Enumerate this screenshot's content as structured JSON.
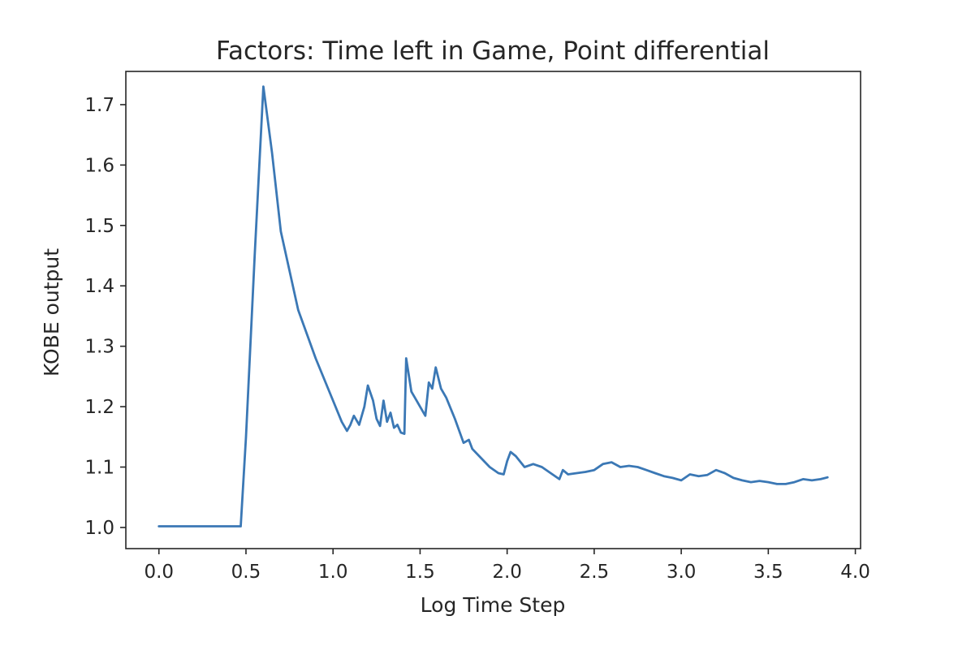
{
  "chart_data": {
    "type": "line",
    "title": "Factors: Time left in Game, Point differential",
    "xlabel": "Log Time Step",
    "ylabel": "KOBE output",
    "xlim": [
      -0.19,
      4.03
    ],
    "ylim": [
      0.965,
      1.755
    ],
    "xticks": [
      0.0,
      0.5,
      1.0,
      1.5,
      2.0,
      2.5,
      3.0,
      3.5,
      4.0
    ],
    "xtick_labels": [
      "0.0",
      "0.5",
      "1.0",
      "1.5",
      "2.0",
      "2.5",
      "3.0",
      "3.5",
      "4.0"
    ],
    "yticks": [
      1.0,
      1.1,
      1.2,
      1.3,
      1.4,
      1.5,
      1.6,
      1.7
    ],
    "ytick_labels": [
      "1.0",
      "1.1",
      "1.2",
      "1.3",
      "1.4",
      "1.5",
      "1.6",
      "1.7"
    ],
    "grid": false,
    "series": [
      {
        "color": "#3b78b5",
        "x": [
          0.0,
          0.3,
          0.47,
          0.5,
          0.55,
          0.6,
          0.65,
          0.7,
          0.8,
          0.9,
          1.0,
          1.05,
          1.08,
          1.1,
          1.12,
          1.15,
          1.18,
          1.2,
          1.23,
          1.25,
          1.27,
          1.29,
          1.31,
          1.33,
          1.35,
          1.37,
          1.39,
          1.41,
          1.42,
          1.45,
          1.48,
          1.5,
          1.53,
          1.55,
          1.57,
          1.59,
          1.62,
          1.65,
          1.7,
          1.75,
          1.78,
          1.8,
          1.85,
          1.9,
          1.95,
          1.98,
          2.0,
          2.02,
          2.05,
          2.1,
          2.15,
          2.2,
          2.25,
          2.3,
          2.32,
          2.35,
          2.4,
          2.45,
          2.5,
          2.55,
          2.6,
          2.65,
          2.7,
          2.75,
          2.8,
          2.85,
          2.9,
          2.95,
          3.0,
          3.05,
          3.1,
          3.15,
          3.2,
          3.25,
          3.3,
          3.35,
          3.4,
          3.45,
          3.5,
          3.55,
          3.6,
          3.65,
          3.7,
          3.75,
          3.8,
          3.84
        ],
        "y": [
          1.002,
          1.002,
          1.002,
          1.15,
          1.45,
          1.73,
          1.62,
          1.49,
          1.36,
          1.28,
          1.21,
          1.175,
          1.16,
          1.17,
          1.185,
          1.17,
          1.2,
          1.235,
          1.21,
          1.18,
          1.168,
          1.21,
          1.175,
          1.19,
          1.165,
          1.17,
          1.157,
          1.155,
          1.28,
          1.225,
          1.21,
          1.2,
          1.185,
          1.24,
          1.23,
          1.265,
          1.23,
          1.215,
          1.18,
          1.14,
          1.145,
          1.13,
          1.115,
          1.1,
          1.09,
          1.088,
          1.11,
          1.125,
          1.118,
          1.1,
          1.105,
          1.1,
          1.09,
          1.08,
          1.095,
          1.088,
          1.09,
          1.092,
          1.095,
          1.105,
          1.108,
          1.1,
          1.102,
          1.1,
          1.095,
          1.09,
          1.085,
          1.082,
          1.078,
          1.088,
          1.085,
          1.087,
          1.095,
          1.09,
          1.082,
          1.078,
          1.075,
          1.077,
          1.075,
          1.072,
          1.072,
          1.075,
          1.08,
          1.078,
          1.08,
          1.083
        ]
      }
    ]
  }
}
